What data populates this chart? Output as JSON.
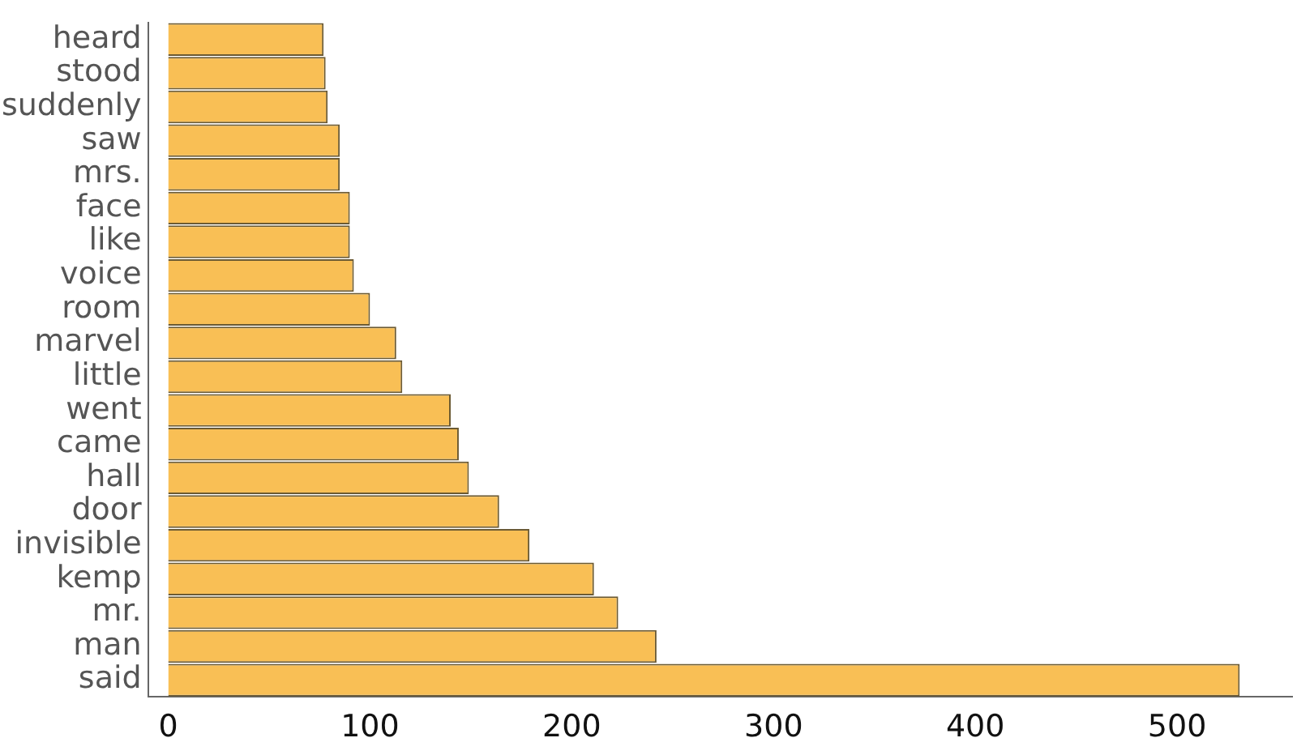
{
  "chart_data": {
    "type": "bar",
    "orientation": "horizontal",
    "categories": [
      "heard",
      "stood",
      "suddenly",
      "saw",
      "mrs.",
      "face",
      "like",
      "voice",
      "room",
      "marvel",
      "little",
      "went",
      "came",
      "hall",
      "door",
      "invisible",
      "kemp",
      "mr.",
      "man",
      "said"
    ],
    "values": [
      77,
      78,
      79,
      85,
      85,
      90,
      90,
      92,
      100,
      113,
      116,
      140,
      144,
      149,
      164,
      179,
      211,
      223,
      242,
      531
    ],
    "color": "#f9bf55",
    "xlim": [
      -10,
      557
    ],
    "xticks": [
      0,
      100,
      200,
      300,
      400,
      500
    ],
    "grid": false,
    "legend": false
  }
}
